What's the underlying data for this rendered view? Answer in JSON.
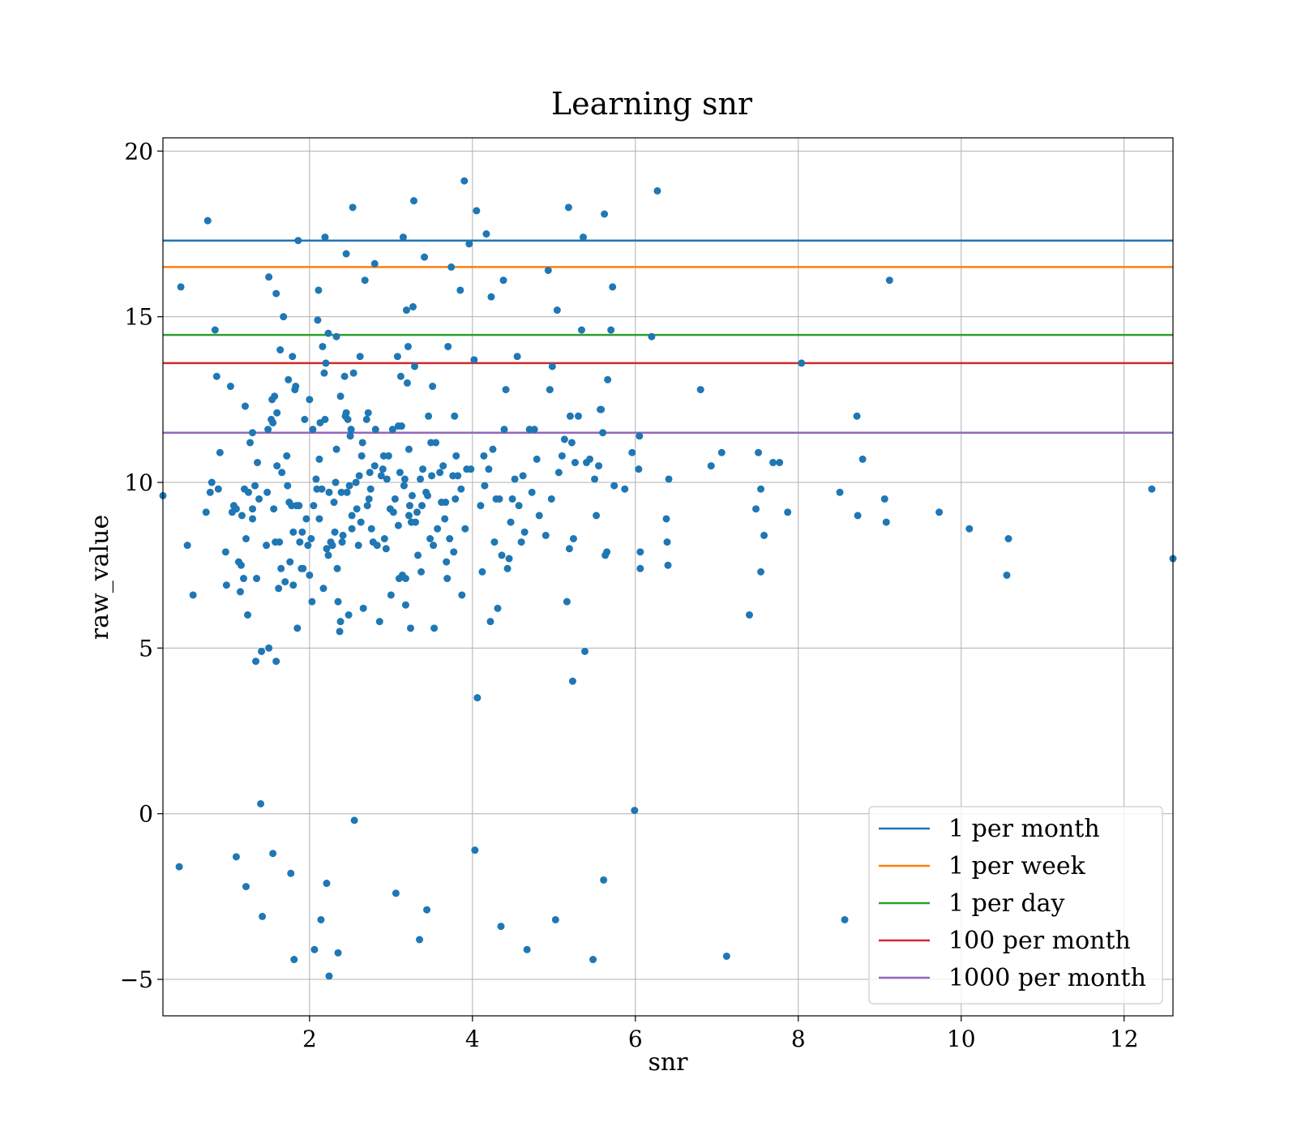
{
  "chart_data": {
    "type": "scatter",
    "title": "Learning snr",
    "xlabel": "snr",
    "ylabel": "raw_value",
    "xlim": [
      0.2,
      12.6
    ],
    "ylim": [
      -6.1,
      20.4
    ],
    "xticks": [
      2,
      4,
      6,
      8,
      10,
      12
    ],
    "xtick_labels": [
      "2",
      "4",
      "6",
      "8",
      "10",
      "12"
    ],
    "yticks": [
      -5,
      0,
      5,
      10,
      15,
      20
    ],
    "ytick_labels": [
      "−5",
      "0",
      "5",
      "10",
      "15",
      "20"
    ],
    "grid": true,
    "legend_position": "lower-right",
    "point_color": "#1f77b4",
    "hlines": [
      {
        "name": "1 per month",
        "y": 17.3,
        "color": "#1f77b4"
      },
      {
        "name": "1 per week",
        "y": 16.5,
        "color": "#ff7f0e"
      },
      {
        "name": "1 per day",
        "y": 14.45,
        "color": "#2ca02c"
      },
      {
        "name": "100 per month",
        "y": 13.6,
        "color": "#d62728"
      },
      {
        "name": "1000 per month",
        "y": 11.5,
        "color": "#9467bd"
      }
    ],
    "points": [
      [
        0.2,
        9.6
      ],
      [
        0.42,
        15.9
      ],
      [
        0.4,
        -1.6
      ],
      [
        0.5,
        8.1
      ],
      [
        0.57,
        6.6
      ],
      [
        0.73,
        9.1
      ],
      [
        0.75,
        17.9
      ],
      [
        0.78,
        9.7
      ],
      [
        0.8,
        10
      ],
      [
        0.84,
        14.6
      ],
      [
        0.86,
        13.2
      ],
      [
        0.88,
        9.8
      ],
      [
        0.9,
        10.9
      ],
      [
        0.97,
        7.9
      ],
      [
        0.98,
        6.9
      ],
      [
        1.03,
        12.9
      ],
      [
        1.05,
        9.1
      ],
      [
        1.07,
        9.3
      ],
      [
        1.1,
        9.2
      ],
      [
        1.1,
        -1.3
      ],
      [
        1.13,
        7.6
      ],
      [
        1.15,
        6.7
      ],
      [
        1.16,
        7.5
      ],
      [
        1.17,
        9
      ],
      [
        1.19,
        7.1
      ],
      [
        1.2,
        9.8
      ],
      [
        1.21,
        12.3
      ],
      [
        1.22,
        8.3
      ],
      [
        1.22,
        -2.2
      ],
      [
        1.24,
        6
      ],
      [
        1.25,
        9.7
      ],
      [
        1.27,
        11.2
      ],
      [
        1.3,
        9.2
      ],
      [
        1.3,
        8.9
      ],
      [
        1.3,
        11.5
      ],
      [
        1.33,
        9.9
      ],
      [
        1.34,
        4.6
      ],
      [
        1.35,
        7.1
      ],
      [
        1.36,
        10.6
      ],
      [
        1.38,
        9.5
      ],
      [
        1.4,
        0.3
      ],
      [
        1.41,
        4.9
      ],
      [
        1.42,
        -3.1
      ],
      [
        1.47,
        8.1
      ],
      [
        1.48,
        9.7
      ],
      [
        1.49,
        11.6
      ],
      [
        1.5,
        16.2
      ],
      [
        1.5,
        5
      ],
      [
        1.53,
        11.9
      ],
      [
        1.54,
        12.5
      ],
      [
        1.55,
        11.8
      ],
      [
        1.55,
        -1.2
      ],
      [
        1.56,
        9.2
      ],
      [
        1.57,
        12.6
      ],
      [
        1.58,
        8.2
      ],
      [
        1.59,
        15.7
      ],
      [
        1.59,
        4.6
      ],
      [
        1.6,
        10.5
      ],
      [
        1.6,
        12.1
      ],
      [
        1.62,
        6.8
      ],
      [
        1.63,
        8.2
      ],
      [
        1.64,
        14
      ],
      [
        1.65,
        7.4
      ],
      [
        1.66,
        10.3
      ],
      [
        1.68,
        15
      ],
      [
        1.7,
        7
      ],
      [
        1.72,
        10.8
      ],
      [
        1.73,
        9.9
      ],
      [
        1.74,
        13.1
      ],
      [
        1.75,
        9.4
      ],
      [
        1.76,
        7.6
      ],
      [
        1.77,
        -1.8
      ],
      [
        1.78,
        9.3
      ],
      [
        1.79,
        13.8
      ],
      [
        1.8,
        8.5
      ],
      [
        1.8,
        6.9
      ],
      [
        1.81,
        -4.4
      ],
      [
        1.82,
        12.8
      ],
      [
        1.83,
        12.9
      ],
      [
        1.84,
        9.3
      ],
      [
        1.85,
        5.6
      ],
      [
        1.86,
        17.3
      ],
      [
        1.87,
        9.3
      ],
      [
        1.88,
        8.2
      ],
      [
        1.9,
        7.4
      ],
      [
        1.91,
        8.5
      ],
      [
        1.92,
        7.4
      ],
      [
        1.94,
        11.9
      ],
      [
        1.96,
        8.9
      ],
      [
        1.98,
        8.1
      ],
      [
        2,
        12.5
      ],
      [
        2,
        7.2
      ],
      [
        2.02,
        8.3
      ],
      [
        2.03,
        6.4
      ],
      [
        2.04,
        11.6
      ],
      [
        2.05,
        9.3
      ],
      [
        2.06,
        -4.1
      ],
      [
        2.08,
        10.1
      ],
      [
        2.09,
        9.8
      ],
      [
        2.1,
        14.9
      ],
      [
        2.11,
        15.8
      ],
      [
        2.12,
        10.7
      ],
      [
        2.12,
        8.9
      ],
      [
        2.13,
        11.8
      ],
      [
        2.14,
        -3.2
      ],
      [
        2.15,
        9.8
      ],
      [
        2.16,
        14.1
      ],
      [
        2.17,
        6.8
      ],
      [
        2.18,
        13.3
      ],
      [
        2.19,
        11.9
      ],
      [
        2.19,
        17.4
      ],
      [
        2.2,
        13.6
      ],
      [
        2.21,
        8
      ],
      [
        2.21,
        -2.1
      ],
      [
        2.23,
        14.5
      ],
      [
        2.23,
        7.8
      ],
      [
        2.24,
        9.7
      ],
      [
        2.24,
        -4.9
      ],
      [
        2.26,
        8.2
      ],
      [
        2.28,
        8.1
      ],
      [
        2.3,
        9.4
      ],
      [
        2.31,
        8.5
      ],
      [
        2.32,
        10
      ],
      [
        2.33,
        14.4
      ],
      [
        2.33,
        11
      ],
      [
        2.34,
        7.4
      ],
      [
        2.35,
        6.4
      ],
      [
        2.35,
        -4.2
      ],
      [
        2.37,
        5.5
      ],
      [
        2.38,
        12.6
      ],
      [
        2.38,
        5.8
      ],
      [
        2.39,
        9.7
      ],
      [
        2.4,
        8.2
      ],
      [
        2.41,
        8.4
      ],
      [
        2.43,
        13.2
      ],
      [
        2.44,
        12
      ],
      [
        2.45,
        12.1
      ],
      [
        2.45,
        16.9
      ],
      [
        2.46,
        9.7
      ],
      [
        2.47,
        11.9
      ],
      [
        2.48,
        6
      ],
      [
        2.49,
        9.9
      ],
      [
        2.5,
        11.4
      ],
      [
        2.51,
        11.6
      ],
      [
        2.52,
        9
      ],
      [
        2.52,
        8.6
      ],
      [
        2.53,
        18.3
      ],
      [
        2.54,
        13.3
      ],
      [
        2.55,
        -0.2
      ],
      [
        2.57,
        10
      ],
      [
        2.58,
        9.2
      ],
      [
        2.6,
        8.1
      ],
      [
        2.61,
        10.2
      ],
      [
        2.62,
        13.8
      ],
      [
        2.63,
        8.8
      ],
      [
        2.64,
        10.8
      ],
      [
        2.65,
        11.2
      ],
      [
        2.66,
        6.2
      ],
      [
        2.68,
        16.1
      ],
      [
        2.7,
        11.9
      ],
      [
        2.71,
        9.3
      ],
      [
        2.72,
        12.1
      ],
      [
        2.73,
        9.5
      ],
      [
        2.74,
        10.3
      ],
      [
        2.75,
        9.8
      ],
      [
        2.76,
        8.6
      ],
      [
        2.78,
        8.2
      ],
      [
        2.8,
        16.6
      ],
      [
        2.8,
        10.5
      ],
      [
        2.81,
        11.6
      ],
      [
        2.83,
        8.1
      ],
      [
        2.86,
        5.8
      ],
      [
        2.88,
        10.2
      ],
      [
        2.9,
        10.4
      ],
      [
        2.91,
        10.8
      ],
      [
        2.92,
        8.3
      ],
      [
        2.94,
        8
      ],
      [
        2.95,
        10.1
      ],
      [
        2.97,
        10.8
      ],
      [
        2.99,
        9.2
      ],
      [
        3,
        6.6
      ],
      [
        3.02,
        11.6
      ],
      [
        3.03,
        9.1
      ],
      [
        3.05,
        9.5
      ],
      [
        3.06,
        -2.4
      ],
      [
        3.08,
        13.8
      ],
      [
        3.09,
        11.7
      ],
      [
        3.09,
        8.7
      ],
      [
        3.1,
        7.1
      ],
      [
        3.11,
        10.3
      ],
      [
        3.12,
        13.2
      ],
      [
        3.13,
        11.7
      ],
      [
        3.14,
        7.2
      ],
      [
        3.15,
        17.4
      ],
      [
        3.16,
        9.9
      ],
      [
        3.17,
        10.1
      ],
      [
        3.18,
        6.3
      ],
      [
        3.18,
        7.1
      ],
      [
        3.19,
        15.2
      ],
      [
        3.2,
        13
      ],
      [
        3.21,
        14.1
      ],
      [
        3.22,
        11
      ],
      [
        3.22,
        9
      ],
      [
        3.23,
        9.3
      ],
      [
        3.24,
        5.6
      ],
      [
        3.25,
        8.8
      ],
      [
        3.26,
        9.6
      ],
      [
        3.27,
        15.3
      ],
      [
        3.28,
        18.5
      ],
      [
        3.29,
        13.5
      ],
      [
        3.3,
        8.8
      ],
      [
        3.32,
        9.1
      ],
      [
        3.33,
        7.8
      ],
      [
        3.35,
        -3.8
      ],
      [
        3.36,
        10.1
      ],
      [
        3.37,
        7.3
      ],
      [
        3.38,
        9.3
      ],
      [
        3.39,
        10.4
      ],
      [
        3.41,
        16.8
      ],
      [
        3.43,
        9.7
      ],
      [
        3.44,
        -2.9
      ],
      [
        3.45,
        9.6
      ],
      [
        3.46,
        12
      ],
      [
        3.48,
        8.3
      ],
      [
        3.49,
        11.2
      ],
      [
        3.5,
        10.2
      ],
      [
        3.51,
        12.9
      ],
      [
        3.52,
        8.1
      ],
      [
        3.53,
        5.6
      ],
      [
        3.55,
        11.2
      ],
      [
        3.57,
        8.6
      ],
      [
        3.6,
        10.3
      ],
      [
        3.62,
        9.4
      ],
      [
        3.64,
        10.5
      ],
      [
        3.66,
        8.9
      ],
      [
        3.67,
        9.4
      ],
      [
        3.68,
        7.6
      ],
      [
        3.69,
        7.1
      ],
      [
        3.7,
        14.1
      ],
      [
        3.72,
        8.3
      ],
      [
        3.74,
        16.5
      ],
      [
        3.76,
        10.2
      ],
      [
        3.77,
        7.9
      ],
      [
        3.78,
        12
      ],
      [
        3.79,
        9.5
      ],
      [
        3.8,
        10.8
      ],
      [
        3.82,
        10.2
      ],
      [
        3.85,
        15.8
      ],
      [
        3.86,
        9.8
      ],
      [
        3.87,
        6.6
      ],
      [
        3.9,
        19.1
      ],
      [
        3.91,
        8.6
      ],
      [
        3.93,
        10.4
      ],
      [
        3.96,
        17.2
      ],
      [
        3.98,
        10.4
      ],
      [
        4.02,
        13.7
      ],
      [
        4.03,
        -1.1
      ],
      [
        4.05,
        18.2
      ],
      [
        4.06,
        3.5
      ],
      [
        4.1,
        9.3
      ],
      [
        4.12,
        7.3
      ],
      [
        4.14,
        10.8
      ],
      [
        4.15,
        9.9
      ],
      [
        4.17,
        17.5
      ],
      [
        4.2,
        10.4
      ],
      [
        4.22,
        5.8
      ],
      [
        4.23,
        15.6
      ],
      [
        4.25,
        11
      ],
      [
        4.27,
        8.2
      ],
      [
        4.29,
        9.5
      ],
      [
        4.31,
        6.2
      ],
      [
        4.33,
        9.5
      ],
      [
        4.35,
        -3.4
      ],
      [
        4.36,
        7.8
      ],
      [
        4.38,
        16.1
      ],
      [
        4.39,
        11.6
      ],
      [
        4.41,
        12.8
      ],
      [
        4.43,
        7.4
      ],
      [
        4.45,
        7.7
      ],
      [
        4.47,
        8.8
      ],
      [
        4.49,
        9.5
      ],
      [
        4.52,
        10.1
      ],
      [
        4.55,
        13.8
      ],
      [
        4.57,
        9.3
      ],
      [
        4.6,
        8.2
      ],
      [
        4.62,
        10.2
      ],
      [
        4.64,
        8.5
      ],
      [
        4.67,
        -4.1
      ],
      [
        4.7,
        11.6
      ],
      [
        4.73,
        9.7
      ],
      [
        4.76,
        11.6
      ],
      [
        4.79,
        10.7
      ],
      [
        4.82,
        9
      ],
      [
        4.9,
        8.4
      ],
      [
        4.93,
        16.4
      ],
      [
        4.95,
        12.8
      ],
      [
        4.97,
        9.5
      ],
      [
        4.98,
        13.5
      ],
      [
        5.02,
        -3.2
      ],
      [
        5.04,
        15.2
      ],
      [
        5.06,
        10.3
      ],
      [
        5.1,
        10.8
      ],
      [
        5.13,
        11.3
      ],
      [
        5.16,
        6.4
      ],
      [
        5.18,
        18.3
      ],
      [
        5.19,
        8
      ],
      [
        5.2,
        12
      ],
      [
        5.22,
        11.2
      ],
      [
        5.23,
        4
      ],
      [
        5.24,
        8.3
      ],
      [
        5.26,
        10.6
      ],
      [
        5.3,
        12
      ],
      [
        5.34,
        14.6
      ],
      [
        5.36,
        17.4
      ],
      [
        5.38,
        4.9
      ],
      [
        5.4,
        10.6
      ],
      [
        5.44,
        10.7
      ],
      [
        5.48,
        -4.4
      ],
      [
        5.5,
        10.1
      ],
      [
        5.52,
        9
      ],
      [
        5.55,
        10.5
      ],
      [
        5.57,
        12.2
      ],
      [
        5.58,
        12.2
      ],
      [
        5.6,
        11.5
      ],
      [
        5.61,
        -2
      ],
      [
        5.62,
        18.1
      ],
      [
        5.63,
        7.8
      ],
      [
        5.65,
        7.9
      ],
      [
        5.66,
        13.1
      ],
      [
        5.7,
        14.6
      ],
      [
        5.72,
        15.9
      ],
      [
        5.74,
        9.9
      ],
      [
        5.87,
        9.8
      ],
      [
        5.96,
        10.9
      ],
      [
        5.99,
        0.1
      ],
      [
        6.04,
        10.4
      ],
      [
        6.05,
        11.4
      ],
      [
        6.06,
        7.9
      ],
      [
        6.06,
        7.4
      ],
      [
        6.2,
        14.4
      ],
      [
        6.27,
        18.8
      ],
      [
        6.38,
        8.9
      ],
      [
        6.39,
        8.2
      ],
      [
        6.4,
        7.5
      ],
      [
        6.41,
        10.1
      ],
      [
        6.8,
        12.8
      ],
      [
        6.93,
        10.5
      ],
      [
        7.06,
        10.9
      ],
      [
        7.12,
        -4.3
      ],
      [
        7.4,
        6
      ],
      [
        7.48,
        9.2
      ],
      [
        7.51,
        10.9
      ],
      [
        7.54,
        9.8
      ],
      [
        7.54,
        7.3
      ],
      [
        7.58,
        8.4
      ],
      [
        7.69,
        10.6
      ],
      [
        7.77,
        10.6
      ],
      [
        7.87,
        9.1
      ],
      [
        8.04,
        13.6
      ],
      [
        8.51,
        9.7
      ],
      [
        8.57,
        -3.2
      ],
      [
        8.72,
        12
      ],
      [
        8.73,
        9
      ],
      [
        8.79,
        10.7
      ],
      [
        9.06,
        9.5
      ],
      [
        9.08,
        8.8
      ],
      [
        9.12,
        16.1
      ],
      [
        9.73,
        9.1
      ],
      [
        10.1,
        8.6
      ],
      [
        10.56,
        7.2
      ],
      [
        10.58,
        8.3
      ],
      [
        12.34,
        9.8
      ],
      [
        12.6,
        7.7
      ]
    ]
  }
}
